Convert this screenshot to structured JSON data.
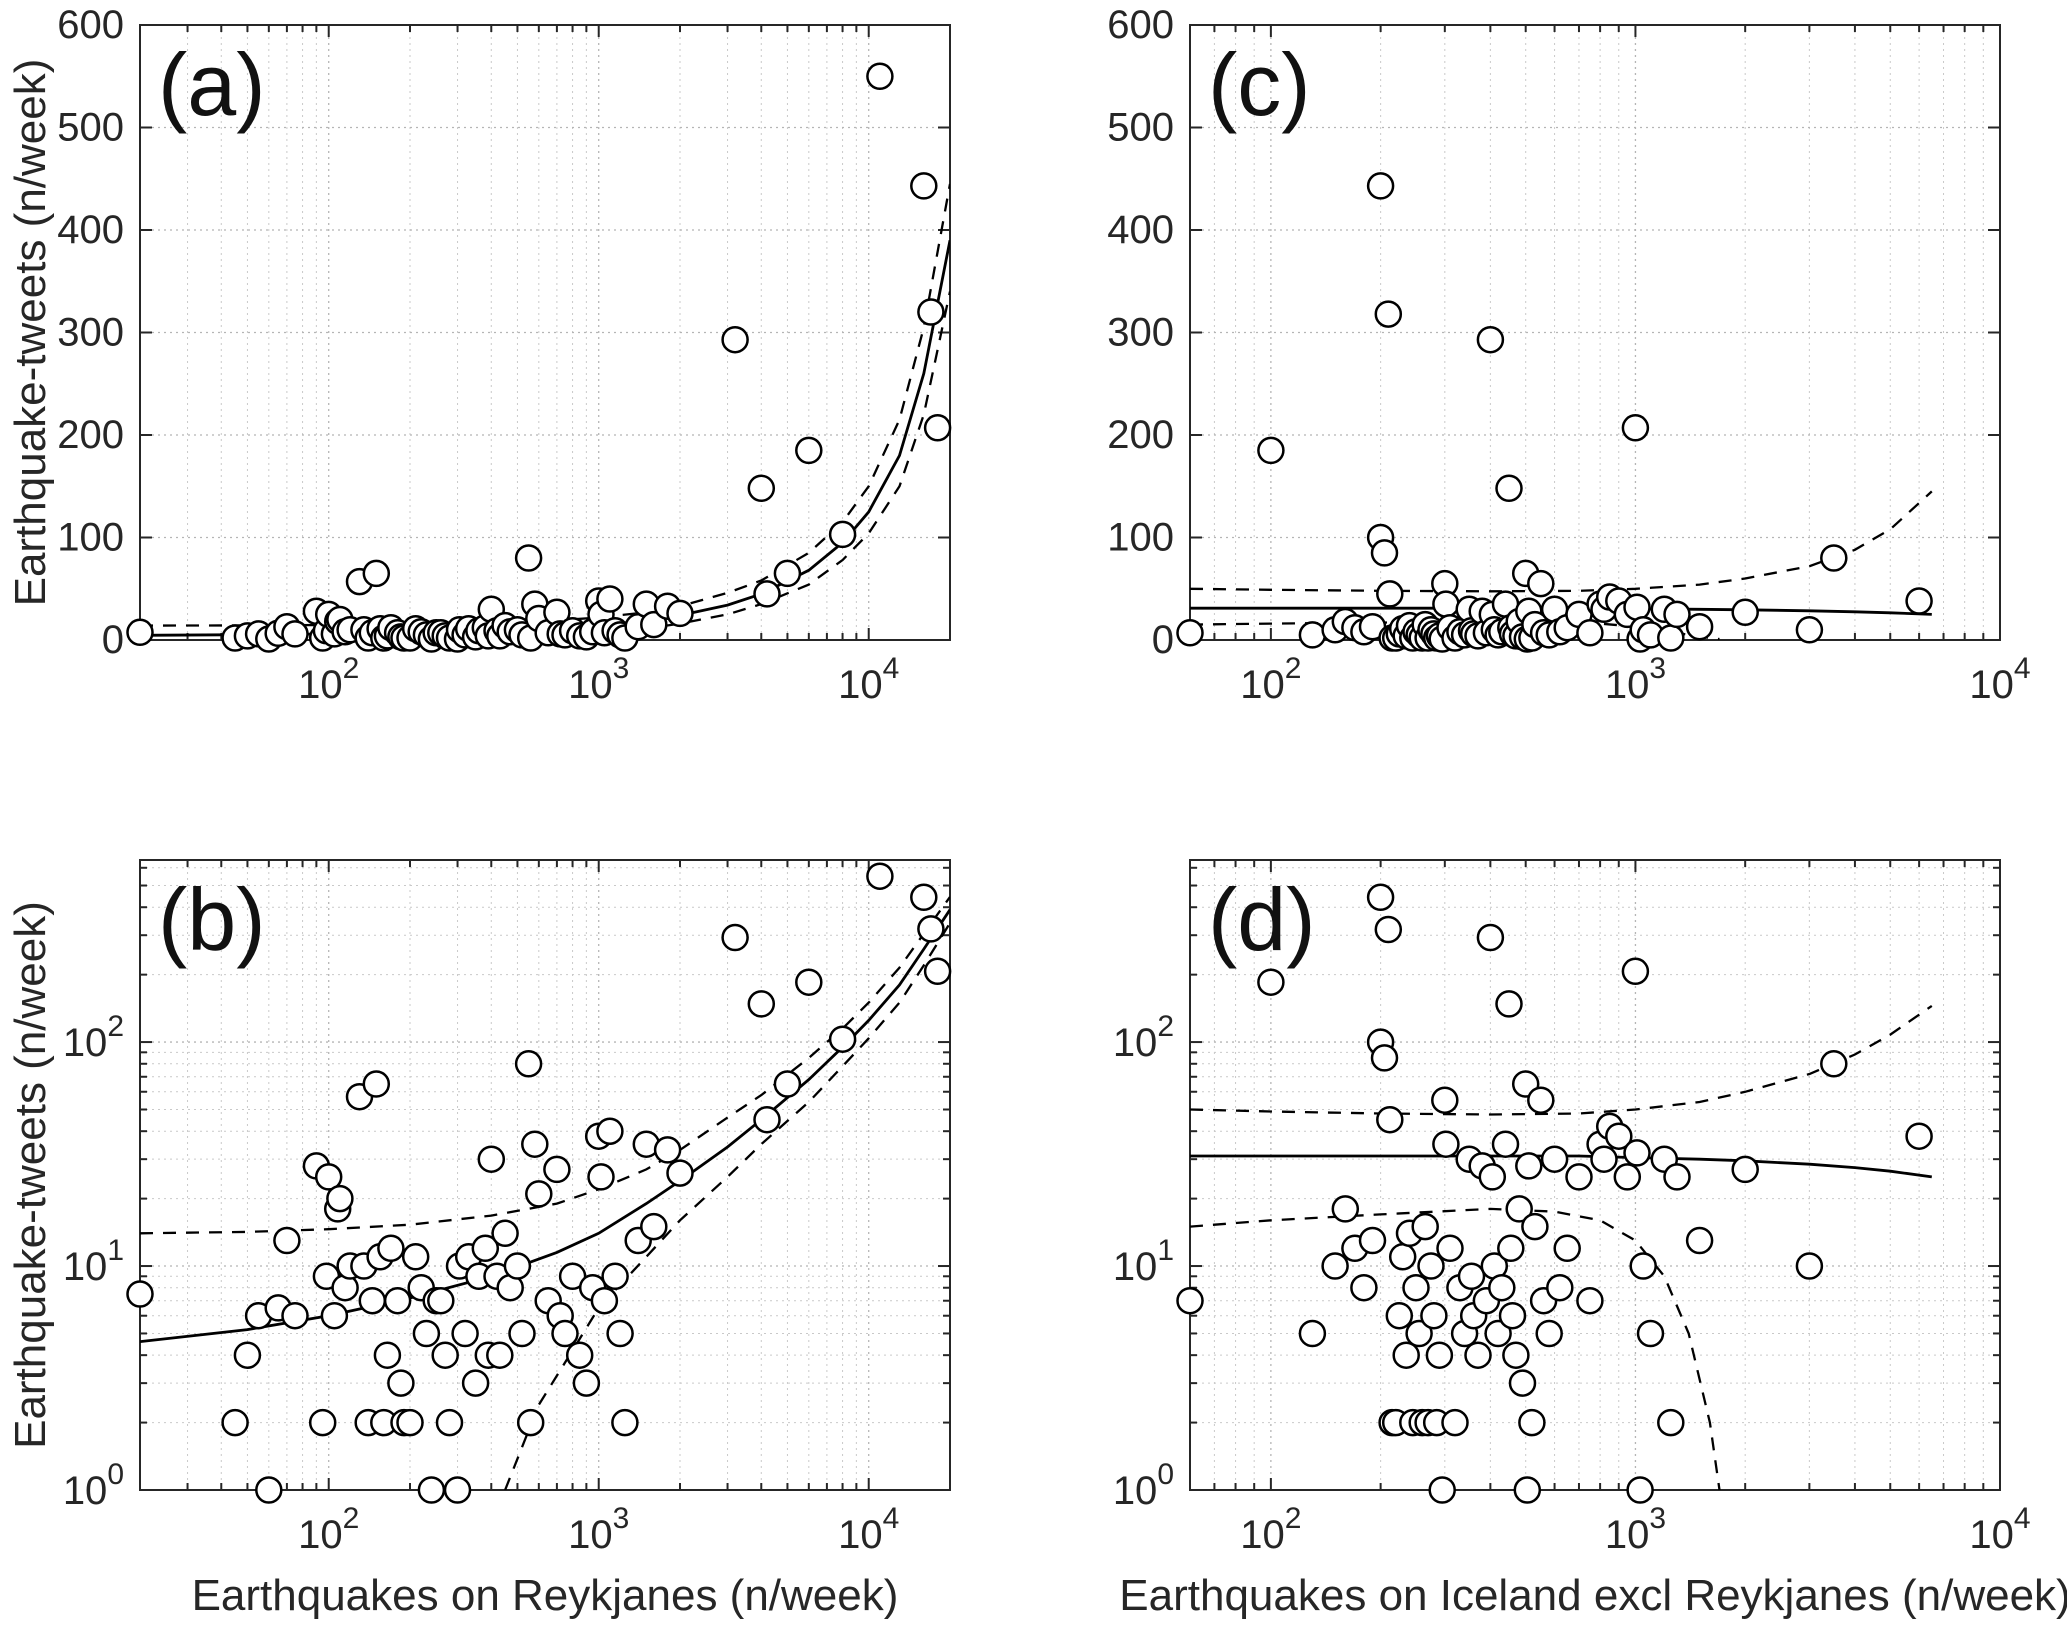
{
  "chart_data": {
    "type": "scatter",
    "description": "Four-panel scatter figure: weekly earthquake-tweet counts versus weekly earthquake counts, with regression fit (solid line) and confidence bounds (dashed lines). Panels (a)/(b) use earthquakes on Reykjanes (linear and log y); panels (c)/(d) use earthquakes on Iceland excluding Reykjanes (linear and log y).",
    "panels": [
      {
        "key": "a",
        "label": "(a)",
        "position": "top-left",
        "xscale": "log",
        "yscale": "linear",
        "xlim": [
          20,
          20000
        ],
        "ylim": [
          0,
          600
        ],
        "xticks": [
          100,
          1000,
          10000
        ],
        "yticks": [
          0,
          100,
          200,
          300,
          400,
          500,
          600
        ],
        "xlabel": "",
        "ylabel": "Earthquake-tweets (n/week)",
        "series": "reykjanes"
      },
      {
        "key": "c",
        "label": "(c)",
        "position": "top-right",
        "xscale": "log",
        "yscale": "linear",
        "xlim": [
          60,
          10000
        ],
        "ylim": [
          0,
          600
        ],
        "xticks": [
          100,
          1000,
          10000
        ],
        "yticks": [
          0,
          100,
          200,
          300,
          400,
          500,
          600
        ],
        "xlabel": "",
        "ylabel": "",
        "series": "iceland"
      },
      {
        "key": "b",
        "label": "(b)",
        "position": "bottom-left",
        "xscale": "log",
        "yscale": "log",
        "xlim": [
          20,
          20000
        ],
        "ylim": [
          1,
          650
        ],
        "xticks": [
          100,
          1000,
          10000
        ],
        "yticks": [
          1,
          10,
          100
        ],
        "xlabel": "Earthquakes on Reykjanes (n/week)",
        "ylabel": "Earthquake-tweets (n/week)",
        "series": "reykjanes"
      },
      {
        "key": "d",
        "label": "(d)",
        "position": "bottom-right",
        "xscale": "log",
        "yscale": "log",
        "xlim": [
          60,
          10000
        ],
        "ylim": [
          1,
          650
        ],
        "xticks": [
          100,
          1000,
          10000
        ],
        "yticks": [
          1,
          10,
          100
        ],
        "xlabel": "Earthquakes on Iceland excl Reykjanes (n/week)",
        "ylabel": "",
        "series": "iceland"
      }
    ],
    "series": {
      "reykjanes": {
        "points": [
          [
            20,
            7.5
          ],
          [
            45,
            2
          ],
          [
            50,
            4
          ],
          [
            55,
            6
          ],
          [
            60,
            1
          ],
          [
            65,
            6.5
          ],
          [
            70,
            13
          ],
          [
            75,
            6
          ],
          [
            90,
            28
          ],
          [
            95,
            2
          ],
          [
            98,
            9
          ],
          [
            100,
            25
          ],
          [
            105,
            6
          ],
          [
            108,
            18
          ],
          [
            110,
            20
          ],
          [
            115,
            8
          ],
          [
            120,
            10
          ],
          [
            130,
            57
          ],
          [
            135,
            10
          ],
          [
            140,
            2
          ],
          [
            145,
            7
          ],
          [
            150,
            65
          ],
          [
            155,
            11
          ],
          [
            160,
            2
          ],
          [
            165,
            4
          ],
          [
            170,
            12
          ],
          [
            180,
            7
          ],
          [
            185,
            3
          ],
          [
            190,
            2
          ],
          [
            200,
            2
          ],
          [
            210,
            11
          ],
          [
            220,
            8
          ],
          [
            230,
            5
          ],
          [
            240,
            1
          ],
          [
            250,
            7
          ],
          [
            260,
            7
          ],
          [
            270,
            4
          ],
          [
            280,
            2
          ],
          [
            300,
            1
          ],
          [
            305,
            10
          ],
          [
            320,
            5
          ],
          [
            330,
            11
          ],
          [
            350,
            3
          ],
          [
            360,
            9
          ],
          [
            380,
            12
          ],
          [
            390,
            4
          ],
          [
            400,
            30
          ],
          [
            420,
            9
          ],
          [
            430,
            4
          ],
          [
            450,
            14
          ],
          [
            470,
            8
          ],
          [
            500,
            10
          ],
          [
            520,
            5
          ],
          [
            550,
            80
          ],
          [
            560,
            2
          ],
          [
            580,
            35
          ],
          [
            600,
            21
          ],
          [
            650,
            7
          ],
          [
            700,
            27
          ],
          [
            720,
            6
          ],
          [
            750,
            5
          ],
          [
            800,
            9
          ],
          [
            850,
            4
          ],
          [
            900,
            3
          ],
          [
            950,
            8
          ],
          [
            1000,
            38
          ],
          [
            1020,
            25
          ],
          [
            1050,
            7
          ],
          [
            1100,
            40
          ],
          [
            1150,
            9
          ],
          [
            1200,
            5
          ],
          [
            1250,
            2
          ],
          [
            1400,
            13
          ],
          [
            1500,
            35
          ],
          [
            1600,
            15
          ],
          [
            1800,
            33
          ],
          [
            2000,
            26
          ],
          [
            3200,
            293
          ],
          [
            4000,
            148
          ],
          [
            4200,
            45
          ],
          [
            5000,
            65
          ],
          [
            6000,
            185
          ],
          [
            8000,
            103
          ],
          [
            11000,
            550
          ],
          [
            16000,
            443
          ],
          [
            17000,
            320
          ],
          [
            18000,
            207
          ]
        ],
        "fit": [
          [
            20,
            4.6
          ],
          [
            50,
            5.2
          ],
          [
            100,
            6.0
          ],
          [
            200,
            7.2
          ],
          [
            400,
            9.0
          ],
          [
            700,
            11.5
          ],
          [
            1000,
            14
          ],
          [
            1500,
            19
          ],
          [
            2000,
            24
          ],
          [
            3000,
            34
          ],
          [
            4000,
            45
          ],
          [
            6000,
            68
          ],
          [
            8000,
            95
          ],
          [
            10000,
            125
          ],
          [
            13000,
            180
          ],
          [
            16000,
            260
          ],
          [
            20000,
            390
          ]
        ],
        "ci_upper": [
          [
            20,
            14
          ],
          [
            50,
            14.2
          ],
          [
            100,
            14.6
          ],
          [
            200,
            15.3
          ],
          [
            400,
            16.8
          ],
          [
            700,
            19
          ],
          [
            1000,
            22
          ],
          [
            1500,
            27
          ],
          [
            2000,
            33
          ],
          [
            3000,
            46
          ],
          [
            4000,
            58
          ],
          [
            6000,
            85
          ],
          [
            8000,
            115
          ],
          [
            10000,
            150
          ],
          [
            13000,
            215
          ],
          [
            16000,
            305
          ],
          [
            20000,
            445
          ]
        ],
        "ci_lower": [
          [
            450,
            1
          ],
          [
            600,
            2.4
          ],
          [
            800,
            4.2
          ],
          [
            1000,
            6.5
          ],
          [
            1500,
            11
          ],
          [
            2000,
            16
          ],
          [
            3000,
            25
          ],
          [
            4000,
            35
          ],
          [
            6000,
            54
          ],
          [
            8000,
            78
          ],
          [
            10000,
            104
          ],
          [
            13000,
            150
          ],
          [
            16000,
            220
          ],
          [
            20000,
            340
          ]
        ]
      },
      "iceland": {
        "points": [
          [
            60,
            7
          ],
          [
            100,
            185
          ],
          [
            130,
            5
          ],
          [
            150,
            10
          ],
          [
            160,
            18
          ],
          [
            170,
            12
          ],
          [
            180,
            8
          ],
          [
            190,
            13
          ],
          [
            200,
            443
          ],
          [
            200,
            100
          ],
          [
            205,
            85
          ],
          [
            210,
            318
          ],
          [
            212,
            45
          ],
          [
            215,
            2
          ],
          [
            220,
            2
          ],
          [
            225,
            6
          ],
          [
            230,
            11
          ],
          [
            235,
            4
          ],
          [
            240,
            14
          ],
          [
            245,
            2
          ],
          [
            250,
            8
          ],
          [
            255,
            5
          ],
          [
            260,
            2
          ],
          [
            265,
            15
          ],
          [
            270,
            2
          ],
          [
            275,
            10
          ],
          [
            280,
            6
          ],
          [
            285,
            2
          ],
          [
            290,
            4
          ],
          [
            295,
            1
          ],
          [
            300,
            55
          ],
          [
            302,
            35
          ],
          [
            310,
            12
          ],
          [
            320,
            2
          ],
          [
            330,
            8
          ],
          [
            340,
            5
          ],
          [
            350,
            30
          ],
          [
            355,
            9
          ],
          [
            360,
            6
          ],
          [
            370,
            4
          ],
          [
            380,
            28
          ],
          [
            390,
            7
          ],
          [
            400,
            293
          ],
          [
            405,
            25
          ],
          [
            410,
            10
          ],
          [
            420,
            5
          ],
          [
            430,
            8
          ],
          [
            440,
            35
          ],
          [
            450,
            148
          ],
          [
            455,
            12
          ],
          [
            460,
            6
          ],
          [
            470,
            4
          ],
          [
            480,
            18
          ],
          [
            490,
            3
          ],
          [
            500,
            65
          ],
          [
            505,
            1
          ],
          [
            510,
            28
          ],
          [
            520,
            2
          ],
          [
            530,
            15
          ],
          [
            550,
            55
          ],
          [
            560,
            7
          ],
          [
            580,
            5
          ],
          [
            600,
            30
          ],
          [
            620,
            8
          ],
          [
            650,
            12
          ],
          [
            700,
            25
          ],
          [
            750,
            7
          ],
          [
            800,
            35
          ],
          [
            820,
            30
          ],
          [
            850,
            42
          ],
          [
            900,
            38
          ],
          [
            950,
            25
          ],
          [
            1000,
            207
          ],
          [
            1010,
            32
          ],
          [
            1030,
            1
          ],
          [
            1050,
            10
          ],
          [
            1100,
            5
          ],
          [
            1200,
            30
          ],
          [
            1250,
            2
          ],
          [
            1300,
            25
          ],
          [
            1500,
            13
          ],
          [
            2000,
            27
          ],
          [
            3000,
            10
          ],
          [
            3500,
            80
          ],
          [
            6000,
            38
          ]
        ],
        "fit": [
          [
            60,
            31
          ],
          [
            100,
            31
          ],
          [
            200,
            31
          ],
          [
            400,
            31
          ],
          [
            700,
            31
          ],
          [
            1000,
            30.5
          ],
          [
            1500,
            30
          ],
          [
            2000,
            29.5
          ],
          [
            3000,
            28.5
          ],
          [
            4000,
            27.5
          ],
          [
            5000,
            26.5
          ],
          [
            6500,
            25
          ]
        ],
        "ci_upper": [
          [
            60,
            50
          ],
          [
            100,
            49
          ],
          [
            200,
            48
          ],
          [
            400,
            47.5
          ],
          [
            700,
            48
          ],
          [
            1000,
            50
          ],
          [
            1500,
            54
          ],
          [
            2000,
            60
          ],
          [
            3000,
            72
          ],
          [
            4000,
            88
          ],
          [
            5000,
            108
          ],
          [
            6500,
            145
          ]
        ],
        "ci_lower": [
          [
            60,
            15
          ],
          [
            100,
            16
          ],
          [
            200,
            17
          ],
          [
            400,
            18
          ],
          [
            600,
            17.5
          ],
          [
            800,
            16
          ],
          [
            1000,
            13
          ],
          [
            1200,
            9
          ],
          [
            1400,
            5
          ],
          [
            1600,
            2
          ],
          [
            1700,
            1
          ]
        ]
      }
    },
    "styles": {
      "marker": {
        "shape": "circle",
        "fill": "#ffffff",
        "stroke": "#000000"
      },
      "fit_line": {
        "color": "#000000",
        "style": "solid"
      },
      "ci_line": {
        "color": "#000000",
        "style": "dashed"
      },
      "grid_major_color": "#b5b5b5",
      "grid_minor_color": "#c9c9c9",
      "axis_color": "#262626",
      "panel_label_color": "#111111"
    },
    "legend": null,
    "grid": "on (dotted major and minor grid, MATLAB style)"
  }
}
